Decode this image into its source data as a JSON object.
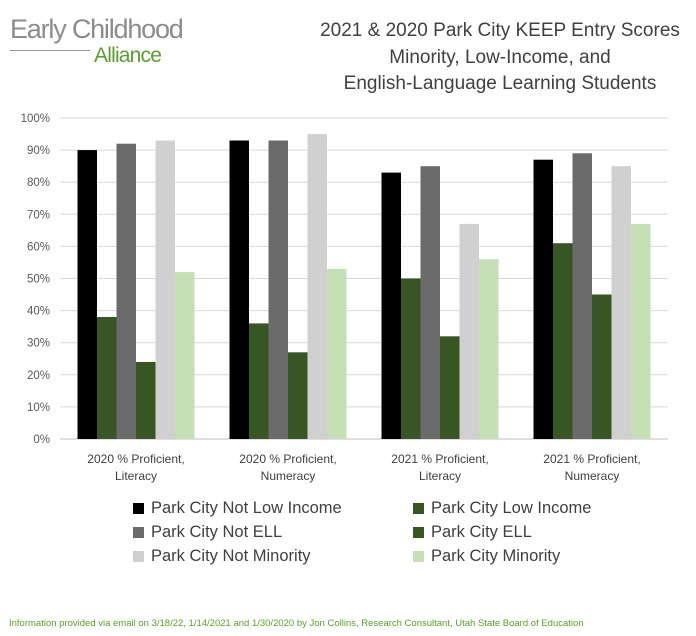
{
  "logo": {
    "line1": "Early Childhood",
    "line2": "Alliance"
  },
  "title_lines": [
    "2021 & 2020 Park City KEEP Entry Scores",
    "Minority, Low-Income, and",
    "English-Language Learning Students"
  ],
  "chart_data": {
    "type": "bar",
    "title": "2021 & 2020 Park City KEEP Entry Scores Minority, Low-Income, and English-Language Learning Students",
    "categories": [
      [
        "2020 % Proficient,",
        "Literacy"
      ],
      [
        "2020 % Proficient,",
        "Numeracy"
      ],
      [
        "2021 % Proficient,",
        "Literacy"
      ],
      [
        "2021 % Proficient,",
        "Numeracy"
      ]
    ],
    "series": [
      {
        "name": "Park City Not Low Income",
        "color": "#000000",
        "values": [
          90,
          93,
          83,
          87
        ]
      },
      {
        "name": "Park City Low Income",
        "color": "#375623",
        "values": [
          38,
          36,
          50,
          61
        ]
      },
      {
        "name": "Park City Not ELL",
        "color": "#6b6b6b",
        "values": [
          92,
          93,
          85,
          89
        ]
      },
      {
        "name": "Park City ELL",
        "color": "#375623",
        "values": [
          24,
          27,
          32,
          45
        ]
      },
      {
        "name": "Park City Not Minority",
        "color": "#d0d0d0",
        "values": [
          93,
          95,
          67,
          85
        ]
      },
      {
        "name": "Park City Minority",
        "color": "#c5e0b4",
        "values": [
          52,
          53,
          56,
          67
        ]
      }
    ],
    "ylim": [
      0,
      100
    ],
    "yticks": [
      "0%",
      "10%",
      "20%",
      "30%",
      "40%",
      "50%",
      "60%",
      "70%",
      "80%",
      "90%",
      "100%"
    ],
    "grid": true,
    "legend_position": "bottom"
  },
  "footer": "Information provided via email on 3/18/22, 1/14/2021 and 1/30/2020 by Jon Collins, Research Consultant, Utah State Board of Education"
}
